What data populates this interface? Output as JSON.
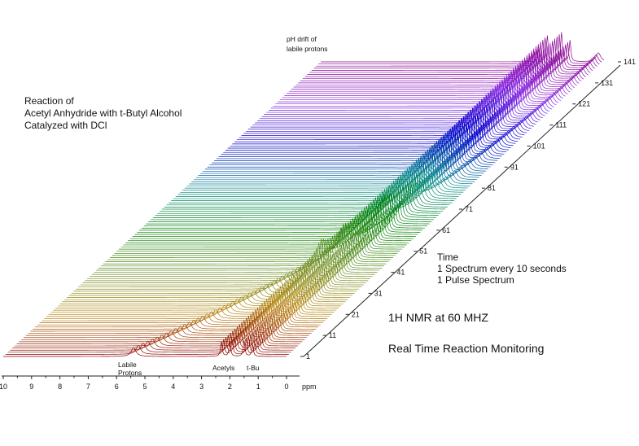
{
  "chart_data": {
    "type": "line",
    "title_lines": [
      "Reaction of",
      "Acetyl Anhydride with t-Butyl Alcohol",
      "Catalyzed with DCl"
    ],
    "xlabel": "ppm",
    "x_ticks": [
      "10",
      "9",
      "8",
      "7",
      "6",
      "5",
      "4",
      "3",
      "2",
      "1",
      "0"
    ],
    "xlim": [
      10,
      0
    ],
    "x_reversed": true,
    "z_ticks": [
      "1",
      "11",
      "21",
      "31",
      "41",
      "51",
      "61",
      "71",
      "81",
      "91",
      "101",
      "111",
      "121",
      "131",
      "141"
    ],
    "spectrum_count": 141,
    "time_note_lines": [
      "Time",
      "1 Spectrum every 10 seconds",
      "1 Pulse Spectrum"
    ],
    "instrument": "1H NMR at 60 MHZ",
    "subtitle": "Real Time Reaction Monitoring",
    "annotations": {
      "ph_drift_lines": [
        "pH drift of",
        "labile protons"
      ],
      "labile_lines": [
        "Labile",
        "Protons"
      ],
      "acetyls": "Acetyls",
      "tbu": "t-Bu"
    },
    "peaks": {
      "labile_ppm_start": 5.4,
      "labile_ppm_end": 0.2,
      "acetyl_ppm": [
        2.3,
        2.0
      ],
      "tbu_ppm": [
        1.5,
        1.2
      ]
    },
    "colors": [
      "#8b0000",
      "#b8860b",
      "#6b8e23",
      "#008000",
      "#008b8b",
      "#0000cd",
      "#8a2be2",
      "#8b008b"
    ]
  }
}
